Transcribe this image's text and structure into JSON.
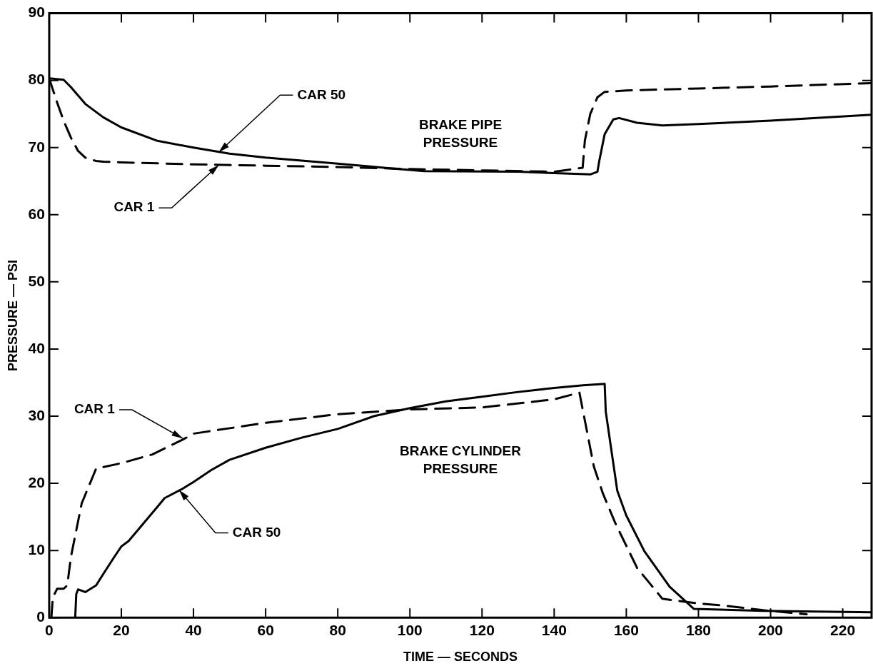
{
  "chart_data": {
    "type": "line",
    "xlabel": "TIME — SECONDS",
    "ylabel": "PRESSURE — PSI",
    "xlim": [
      0,
      228
    ],
    "xticks": [
      0,
      20,
      40,
      60,
      80,
      100,
      120,
      140,
      160,
      180,
      200,
      220
    ],
    "ylim": [
      0,
      90
    ],
    "yticks": [
      0,
      10,
      20,
      30,
      40,
      50,
      60,
      70,
      80,
      90
    ],
    "grid": false,
    "legend": false,
    "marker": "none",
    "series": [
      {
        "color": "#000000",
        "line_style": "solid",
        "x": [
          0,
          4,
          6,
          10,
          15,
          20,
          30,
          40,
          50,
          60,
          80,
          95,
          104,
          130,
          150,
          152,
          152.5,
          154,
          156.4,
          158,
          163,
          170,
          180,
          200,
          228
        ],
        "values": [
          80.3,
          80.1,
          79,
          76.5,
          74.5,
          73,
          71,
          70,
          69.1,
          68.5,
          67.6,
          66.9,
          66.5,
          66.4,
          66,
          66.4,
          68,
          72,
          74.2,
          74.4,
          73.7,
          73.3,
          73.5,
          74,
          74.9
        ]
      },
      {
        "color": "#000000",
        "line_style": "dashed",
        "x": [
          0,
          2,
          4,
          6,
          8,
          10,
          13,
          15,
          20,
          40,
          60,
          80,
          100,
          120,
          140,
          147.9,
          148.5,
          150,
          152,
          154,
          160,
          180,
          200,
          228
        ],
        "values": [
          80.3,
          77,
          74,
          71.5,
          69.5,
          68.5,
          68,
          67.9,
          67.8,
          67.5,
          67.3,
          67.1,
          66.8,
          66.6,
          66.4,
          67,
          71,
          75,
          77.5,
          78.3,
          78.5,
          78.8,
          79.1,
          79.6
        ]
      },
      {
        "color": "#000000",
        "line_style": "dashed",
        "x": [
          0.6,
          1,
          2.2,
          4,
          5,
          6,
          9,
          13,
          20,
          28.6,
          37,
          40,
          60,
          80,
          100,
          120,
          140,
          147,
          151,
          153.5,
          157,
          163,
          170,
          180,
          187,
          198,
          210
        ],
        "values": [
          0,
          3,
          4.3,
          4.3,
          4.8,
          9,
          17,
          22.2,
          23,
          24.3,
          26.5,
          27.4,
          29,
          30.3,
          31,
          31.3,
          32.5,
          33.5,
          22.5,
          18.5,
          14,
          7.4,
          2.8,
          2.1,
          1.8,
          1.1,
          0.5
        ]
      },
      {
        "color": "#000000",
        "line_style": "solid",
        "x": [
          7.2,
          7.5,
          8,
          10,
          13,
          15,
          18,
          20,
          22,
          25,
          30,
          32,
          37,
          40,
          45,
          50,
          60,
          70,
          80,
          90,
          100,
          110,
          120,
          130,
          140,
          148,
          154,
          154.3,
          157.5,
          160,
          165,
          172,
          178.7,
          198,
          228
        ],
        "values": [
          0,
          3.5,
          4.2,
          3.8,
          4.8,
          6.5,
          9,
          10.6,
          11.4,
          13.3,
          16.5,
          17.8,
          19.2,
          20.2,
          22,
          23.5,
          25.3,
          26.8,
          28.1,
          30,
          31.2,
          32.2,
          32.9,
          33.6,
          34.2,
          34.6,
          34.8,
          30.7,
          18.9,
          15.2,
          9.9,
          4.6,
          1.3,
          1,
          0.8
        ]
      }
    ],
    "annotations": [
      {
        "text": "CAR 50",
        "x": 47,
        "y": 69.3
      },
      {
        "text": "CAR 1",
        "x": 47,
        "y": 67.4
      },
      {
        "text": "CAR 1",
        "x": 37,
        "y": 26.7
      },
      {
        "text": "CAR 50",
        "x": 36,
        "y": 19
      },
      "BRAKE PIPE\nPRESSURE",
      "BRAKE CYLINDER\nPRESSURE"
    ]
  }
}
